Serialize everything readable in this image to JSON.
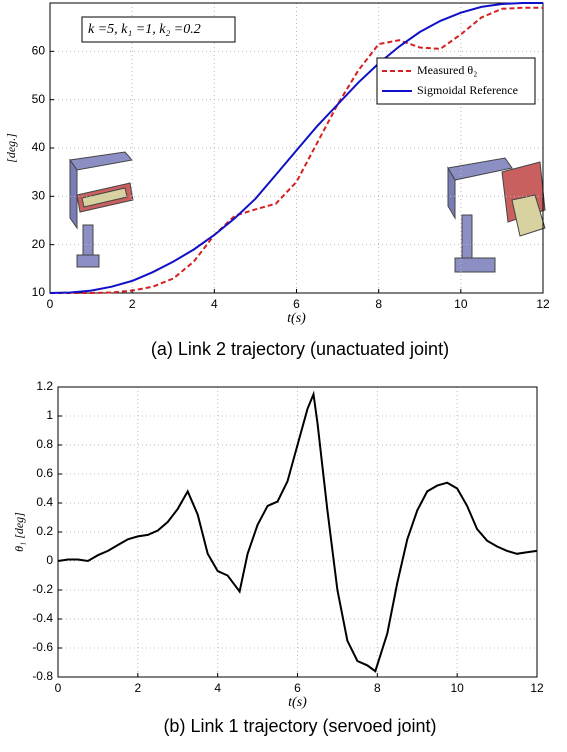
{
  "chart_data": [
    {
      "type": "line",
      "caption": "(a) Link 2 trajectory  (unactuated joint)",
      "xlabel": "t(s)",
      "ylabel": "[deg.]",
      "annotation": "k =5, k₁ =1, k₂ =0.2",
      "x": [
        0,
        0.5,
        1,
        1.5,
        2,
        2.5,
        3,
        3.5,
        4,
        4.5,
        5,
        5.5,
        6,
        6.5,
        7,
        7.5,
        8,
        8.5,
        9,
        9.5,
        10,
        10.5,
        11,
        11.5,
        12
      ],
      "series": [
        {
          "name": "Measured θ₂",
          "color": "#d42020",
          "dash": true,
          "values": [
            10,
            10,
            10,
            10.1,
            10.5,
            11.3,
            13,
            16.5,
            22,
            26,
            27.3,
            28.5,
            33,
            41,
            49,
            56,
            61.5,
            62.3,
            60.8,
            60.5,
            63.5,
            67,
            68.8,
            69,
            69
          ]
        },
        {
          "name": "Sigmoidal Reference",
          "color": "#1010c8",
          "dash": false,
          "values": [
            10,
            10.1,
            10.5,
            11.3,
            12.5,
            14.3,
            16.5,
            19,
            22,
            25.5,
            29.5,
            34.5,
            39.5,
            44.5,
            49,
            53.5,
            57.5,
            61,
            64,
            66.3,
            68,
            69.2,
            69.8,
            70,
            70
          ]
        }
      ],
      "xlim": [
        0,
        12
      ],
      "ylim": [
        10,
        70
      ],
      "xticks": [
        0,
        2,
        4,
        6,
        8,
        10,
        12
      ],
      "yticks": [
        10,
        20,
        30,
        40,
        50,
        60
      ],
      "grid": true,
      "legend": "upper right"
    },
    {
      "type": "line",
      "caption": "(b) Link 1 trajectory  (servoed joint)",
      "xlabel": "t(s)",
      "ylabel": "θ₁ [deg]",
      "x": [
        0,
        0.25,
        0.5,
        0.75,
        1,
        1.25,
        1.5,
        1.75,
        2,
        2.25,
        2.5,
        2.75,
        3,
        3.25,
        3.5,
        3.75,
        4,
        4.25,
        4.55,
        4.75,
        5,
        5.25,
        5.5,
        5.75,
        6,
        6.25,
        6.4,
        6.5,
        6.75,
        7,
        7.25,
        7.5,
        7.75,
        7.95,
        8.25,
        8.5,
        8.75,
        9,
        9.25,
        9.5,
        9.75,
        10,
        10.25,
        10.5,
        10.75,
        11,
        11.25,
        11.5,
        11.75,
        12
      ],
      "series": [
        {
          "name": null,
          "color": "#000000",
          "dash": false,
          "values": [
            0,
            0.01,
            0.01,
            0,
            0.04,
            0.07,
            0.11,
            0.15,
            0.17,
            0.18,
            0.21,
            0.27,
            0.36,
            0.48,
            0.32,
            0.05,
            -0.07,
            -0.1,
            -0.21,
            0.05,
            0.25,
            0.38,
            0.41,
            0.55,
            0.8,
            1.05,
            1.15,
            0.95,
            0.35,
            -0.2,
            -0.55,
            -0.69,
            -0.72,
            -0.76,
            -0.5,
            -0.15,
            0.15,
            0.35,
            0.48,
            0.52,
            0.54,
            0.5,
            0.38,
            0.22,
            0.14,
            0.1,
            0.07,
            0.05,
            0.06,
            0.07
          ]
        }
      ],
      "xlim": [
        0,
        12
      ],
      "ylim": [
        -0.8,
        1.2
      ],
      "xticks": [
        0,
        2,
        4,
        6,
        8,
        10,
        12
      ],
      "yticks": [
        -0.8,
        -0.6,
        -0.4,
        -0.2,
        0,
        0.2,
        0.4,
        0.6,
        0.8,
        1,
        1.2
      ],
      "grid": true
    }
  ]
}
